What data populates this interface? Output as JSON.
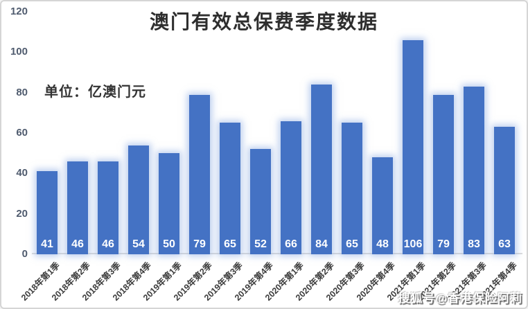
{
  "title": "澳门有效总保费季度数据",
  "unit_label": "单位：亿澳门元",
  "watermark": "搜狐号@香港保险阿莉",
  "colors": {
    "bar": "#4472C4",
    "bar_glow": "rgba(133,165,224,0.55)",
    "axis_line": "#dcdcdc",
    "tick_text": "#4f5b6e",
    "title_text": "#2e2e2e",
    "bar_value_text": "#ffffff"
  },
  "chart_data": {
    "type": "bar",
    "title": "澳门有效总保费季度数据",
    "subtitle": "单位：亿澳门元",
    "categories": [
      "2018年第1季",
      "2018年第2季",
      "2018年第3季",
      "2018年第4季",
      "2019年第1季",
      "2019年第2季",
      "2019年第3季",
      "2019年第4季",
      "2020年第1季",
      "2020年第2季",
      "2020年第3季",
      "2020年第4季",
      "2021年第1季",
      "2021年第2季",
      "2021年第3季",
      "2021年第4季"
    ],
    "values": [
      41,
      46,
      46,
      54,
      50,
      79,
      65,
      52,
      66,
      84,
      65,
      48,
      106,
      79,
      83,
      63
    ],
    "xlabel": "",
    "ylabel": "",
    "ylim": [
      0,
      120
    ],
    "yticks": [
      0,
      20,
      40,
      60,
      80,
      100,
      120
    ],
    "grid": false,
    "legend_position": "none",
    "bar_labels_shown": true
  }
}
